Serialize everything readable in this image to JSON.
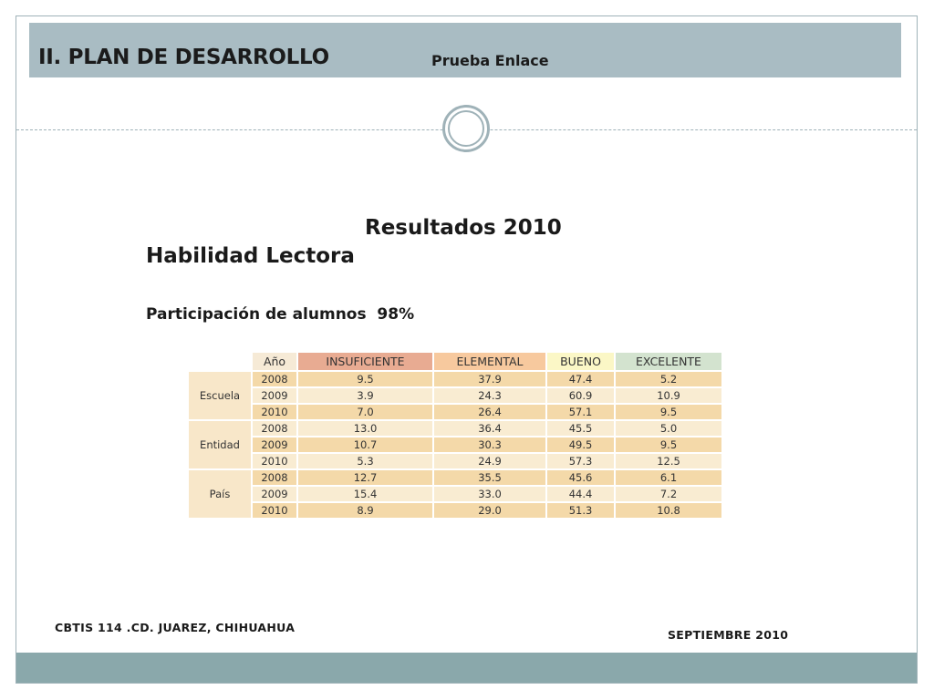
{
  "header": {
    "title": "II. PLAN DE DESARROLLO",
    "subtitle": "Prueba Enlace"
  },
  "content": {
    "heading1": "Resultados 2010",
    "heading2": "Habilidad Lectora",
    "participation": "Participación de alumnos  98%"
  },
  "table": {
    "columns": [
      "Año",
      "INSUFICIENTE",
      "ELEMENTAL",
      "BUENO",
      "EXCELENTE"
    ],
    "groups": [
      {
        "name": "Escuela",
        "rows": [
          {
            "year": "2008",
            "values": [
              "9.5",
              "37.9",
              "47.4",
              "5.2"
            ]
          },
          {
            "year": "2009",
            "values": [
              "3.9",
              "24.3",
              "60.9",
              "10.9"
            ]
          },
          {
            "year": "2010",
            "values": [
              "7.0",
              "26.4",
              "57.1",
              "9.5"
            ]
          }
        ]
      },
      {
        "name": "Entidad",
        "rows": [
          {
            "year": "2008",
            "values": [
              "13.0",
              "36.4",
              "45.5",
              "5.0"
            ]
          },
          {
            "year": "2009",
            "values": [
              "10.7",
              "30.3",
              "49.5",
              "9.5"
            ]
          },
          {
            "year": "2010",
            "values": [
              "5.3",
              "24.9",
              "57.3",
              "12.5"
            ]
          }
        ]
      },
      {
        "name": "País",
        "rows": [
          {
            "year": "2008",
            "values": [
              "12.7",
              "35.5",
              "45.6",
              "6.1"
            ]
          },
          {
            "year": "2009",
            "values": [
              "15.4",
              "33.0",
              "44.4",
              "7.2"
            ]
          },
          {
            "year": "2010",
            "values": [
              "8.9",
              "29.0",
              "51.3",
              "10.8"
            ]
          }
        ]
      }
    ]
  },
  "footer": {
    "left": "CBTIS 114 .CD. JUAREZ, CHIHUAHUA",
    "right": "SEPTIEMBRE 2010"
  },
  "colors": {
    "title_bar": "#a9bcc3",
    "bottom_bar": "#8aa8ab",
    "insuficiente": "#e8ab92",
    "elemental": "#f7c99e",
    "bueno": "#fbf7c6",
    "excelente": "#d3e3cf"
  }
}
